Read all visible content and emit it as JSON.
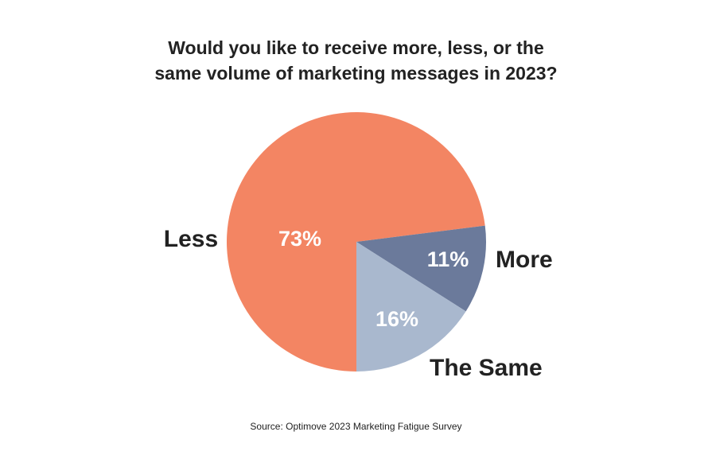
{
  "chart_data": {
    "type": "pie",
    "title_lines": [
      "Would you like to receive more, less, or the",
      "same volume of marketing messages in 2023?"
    ],
    "slices": [
      {
        "label": "Less",
        "value": 73,
        "value_label": "73%",
        "color": "#f38563"
      },
      {
        "label": "More",
        "value": 11,
        "value_label": "11%",
        "color": "#6b7a9b"
      },
      {
        "label": "The Same",
        "value": 16,
        "value_label": "16%",
        "color": "#a9b8ce"
      }
    ],
    "value_label_color": "#ffffff",
    "category_label_color": "#222222"
  },
  "source": "Source: Optimove 2023 Marketing Fatigue Survey"
}
